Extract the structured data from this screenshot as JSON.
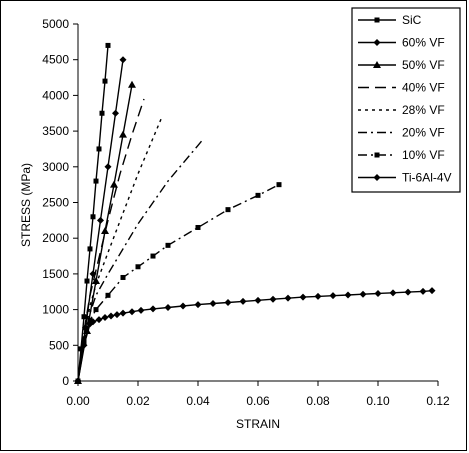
{
  "chart_data": {
    "type": "line",
    "title": "",
    "xlabel": "STRAIN",
    "ylabel": "STRESS (MPa)",
    "xlim": [
      0,
      0.12
    ],
    "ylim": [
      0,
      5000
    ],
    "x_ticks": [
      "0.00",
      "0.02",
      "0.04",
      "0.06",
      "0.08",
      "0.10",
      "0.12"
    ],
    "y_ticks": [
      "0",
      "500",
      "1000",
      "1500",
      "2000",
      "2500",
      "3000",
      "3500",
      "4000",
      "4500",
      "5000"
    ],
    "grid": false,
    "legend_position": "top-right",
    "series": [
      {
        "name": "SiC",
        "line": "solid",
        "marker": "square",
        "x": [
          0,
          0.001,
          0.002,
          0.003,
          0.004,
          0.005,
          0.006,
          0.007,
          0.008,
          0.009,
          0.01
        ],
        "y": [
          0,
          450,
          900,
          1400,
          1850,
          2300,
          2800,
          3250,
          3750,
          4200,
          4700
        ]
      },
      {
        "name": "60% VF",
        "line": "solid",
        "marker": "diamond",
        "x": [
          0,
          0.0025,
          0.005,
          0.0075,
          0.01,
          0.0125,
          0.015
        ],
        "y": [
          0,
          750,
          1500,
          2250,
          3000,
          3750,
          4500
        ]
      },
      {
        "name": "50% VF",
        "line": "solid",
        "marker": "triangle",
        "x": [
          0,
          0.003,
          0.006,
          0.009,
          0.012,
          0.015,
          0.018
        ],
        "y": [
          0,
          700,
          1400,
          2100,
          2750,
          3450,
          4150
        ]
      },
      {
        "name": "40% VF",
        "line": "longdash",
        "marker": "none",
        "x": [
          0,
          0.002,
          0.004,
          0.006,
          0.01,
          0.014,
          0.018,
          0.022
        ],
        "y": [
          0,
          700,
          1200,
          1550,
          2250,
          2900,
          3450,
          3950
        ]
      },
      {
        "name": "28% VF",
        "line": "dot",
        "marker": "none",
        "x": [
          0,
          0.002,
          0.004,
          0.006,
          0.01,
          0.015,
          0.02,
          0.025,
          0.028
        ],
        "y": [
          0,
          650,
          1050,
          1350,
          1800,
          2350,
          2900,
          3400,
          3700
        ]
      },
      {
        "name": "20% VF",
        "line": "dashdot",
        "marker": "none",
        "x": [
          0,
          0.002,
          0.004,
          0.006,
          0.01,
          0.015,
          0.02,
          0.025,
          0.03,
          0.035,
          0.04,
          0.042
        ],
        "y": [
          0,
          600,
          950,
          1200,
          1500,
          1850,
          2200,
          2500,
          2800,
          3050,
          3300,
          3400
        ]
      },
      {
        "name": "10% VF",
        "line": "dashdot",
        "marker": "square",
        "x": [
          0,
          0.002,
          0.004,
          0.006,
          0.01,
          0.015,
          0.02,
          0.025,
          0.03,
          0.04,
          0.05,
          0.06,
          0.067
        ],
        "y": [
          0,
          550,
          850,
          1000,
          1200,
          1450,
          1600,
          1750,
          1900,
          2150,
          2400,
          2600,
          2750
        ]
      },
      {
        "name": "Ti-6Al-4V",
        "line": "solid",
        "marker": "diamond",
        "x": [
          0,
          0.002,
          0.004,
          0.005,
          0.007,
          0.009,
          0.011,
          0.013,
          0.015,
          0.018,
          0.021,
          0.025,
          0.03,
          0.035,
          0.04,
          0.045,
          0.05,
          0.055,
          0.06,
          0.065,
          0.07,
          0.075,
          0.08,
          0.085,
          0.09,
          0.095,
          0.1,
          0.105,
          0.11,
          0.115,
          0.118
        ],
        "y": [
          0,
          500,
          800,
          830,
          860,
          890,
          910,
          930,
          950,
          970,
          990,
          1010,
          1030,
          1050,
          1070,
          1085,
          1100,
          1115,
          1130,
          1145,
          1160,
          1175,
          1185,
          1195,
          1205,
          1215,
          1225,
          1235,
          1245,
          1255,
          1265
        ]
      }
    ]
  }
}
